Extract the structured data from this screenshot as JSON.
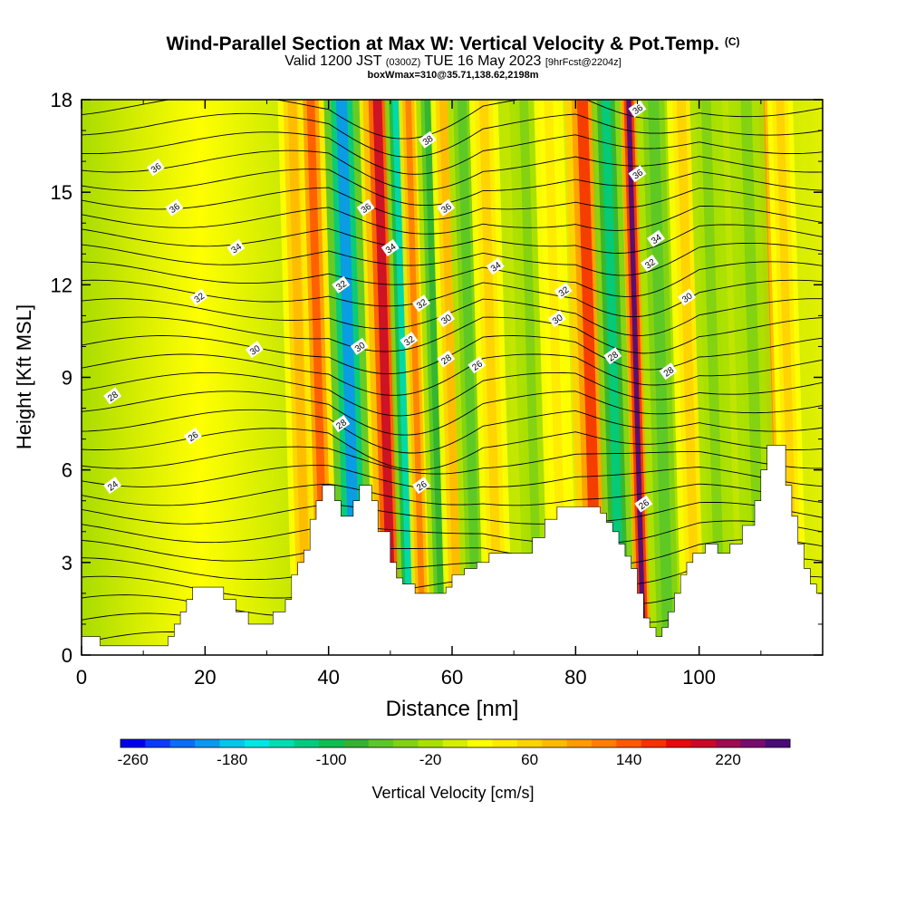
{
  "header": {
    "title": "Wind-Parallel Section at Max W: Vertical Velocity & Pot.Temp.",
    "title_mark": "(C)",
    "valid_prefix": "Valid 1200 JST",
    "valid_utc": "(0300Z)",
    "valid_date": "TUE 16 May 2023",
    "forecast": "[9hrFcst@2204z]",
    "boxwmax": "boxWmax=310@35.71,138.62,2198m"
  },
  "chart_data": {
    "type": "heatmap",
    "xlabel": "Distance [nm]",
    "ylabel": "Height [Kft MSL]",
    "xlim": [
      0,
      120
    ],
    "ylim": [
      0,
      18
    ],
    "x_ticks": [
      0,
      20,
      40,
      60,
      80,
      100
    ],
    "y_ticks": [
      0,
      3,
      6,
      9,
      12,
      15,
      18
    ],
    "colorbar": {
      "label": "Vertical Velocity [cm/s]",
      "tick_labels": [
        "-260",
        "-180",
        "-100",
        "-20",
        "60",
        "140",
        "220"
      ],
      "colors": [
        "#0000ee",
        "#0a3cf8",
        "#0a6ef5",
        "#0a98f0",
        "#00c6f0",
        "#00e6e6",
        "#00dcb4",
        "#00cc80",
        "#10be50",
        "#32b432",
        "#5ac828",
        "#80d214",
        "#aae000",
        "#d4ee00",
        "#ffff00",
        "#ffea00",
        "#ffd200",
        "#ffba00",
        "#ff9c00",
        "#ff7e00",
        "#ff5a00",
        "#f53200",
        "#e60a0a",
        "#c80a28",
        "#a00a50",
        "#7a0a6e",
        "#4a0a7a"
      ]
    },
    "terrain_kft": [
      [
        0,
        0.6
      ],
      [
        3,
        0.3
      ],
      [
        7,
        0.3
      ],
      [
        13,
        0.3
      ],
      [
        14,
        0.6
      ],
      [
        15,
        1.0
      ],
      [
        16,
        1.4
      ],
      [
        17,
        1.8
      ],
      [
        18,
        2.2
      ],
      [
        21,
        2.2
      ],
      [
        23,
        1.8
      ],
      [
        25,
        1.4
      ],
      [
        27,
        1.0
      ],
      [
        30,
        1.0
      ],
      [
        31,
        1.4
      ],
      [
        33,
        1.8
      ],
      [
        34,
        2.6
      ],
      [
        35,
        3.0
      ],
      [
        36,
        3.4
      ],
      [
        37,
        4.4
      ],
      [
        38,
        5.0
      ],
      [
        39,
        5.5
      ],
      [
        40,
        5.5
      ],
      [
        41,
        5.0
      ],
      [
        42,
        4.5
      ],
      [
        43,
        4.5
      ],
      [
        44,
        5.0
      ],
      [
        45,
        5.5
      ],
      [
        46,
        5.5
      ],
      [
        47,
        5.0
      ],
      [
        48,
        4.0
      ],
      [
        50,
        3.0
      ],
      [
        51,
        2.5
      ],
      [
        52,
        2.3
      ],
      [
        54,
        2.0
      ],
      [
        58,
        2.0
      ],
      [
        59,
        2.2
      ],
      [
        60,
        2.6
      ],
      [
        62,
        2.8
      ],
      [
        64,
        3.0
      ],
      [
        66,
        3.3
      ],
      [
        70,
        3.3
      ],
      [
        73,
        3.8
      ],
      [
        75,
        4.4
      ],
      [
        77,
        4.8
      ],
      [
        83,
        4.8
      ],
      [
        84,
        4.6
      ],
      [
        85,
        4.3
      ],
      [
        86,
        4.0
      ],
      [
        87,
        3.6
      ],
      [
        88,
        3.2
      ],
      [
        89,
        2.8
      ],
      [
        90,
        2.0
      ],
      [
        91,
        1.2
      ],
      [
        92,
        0.9
      ],
      [
        93,
        0.6
      ],
      [
        94,
        0.9
      ],
      [
        95,
        1.4
      ],
      [
        96,
        2.0
      ],
      [
        97,
        2.6
      ],
      [
        98,
        3.0
      ],
      [
        99,
        3.3
      ],
      [
        101,
        3.6
      ],
      [
        103,
        3.3
      ],
      [
        105,
        3.6
      ],
      [
        107,
        4.2
      ],
      [
        109,
        5.0
      ],
      [
        110,
        6.0
      ],
      [
        111,
        6.8
      ],
      [
        113,
        6.8
      ],
      [
        114,
        5.5
      ],
      [
        115,
        4.5
      ],
      [
        116,
        3.6
      ],
      [
        117,
        2.8
      ],
      [
        118,
        2.3
      ],
      [
        119,
        2.0
      ],
      [
        120,
        2.0
      ]
    ],
    "velocity_bands_cm_s": [
      {
        "x": 36.5,
        "w": 1.8,
        "v": 80
      },
      {
        "x": 39.5,
        "w": 1.6,
        "v": 140
      },
      {
        "x": 44.5,
        "w": 2.2,
        "v": -200
      },
      {
        "x": 50.3,
        "w": 1.8,
        "v": 200
      },
      {
        "x": 53.3,
        "w": 1.4,
        "v": -140
      },
      {
        "x": 55.3,
        "w": 1.2,
        "v": 120
      },
      {
        "x": 58.5,
        "w": 1.5,
        "v": -80
      },
      {
        "x": 61.0,
        "w": 1.6,
        "v": 80
      },
      {
        "x": 64.0,
        "w": 1.8,
        "v": -60
      },
      {
        "x": 67.5,
        "w": 1.8,
        "v": 60
      },
      {
        "x": 74.0,
        "w": 1.8,
        "v": -40
      },
      {
        "x": 78.0,
        "w": 1.8,
        "v": 40
      },
      {
        "x": 83.5,
        "w": 2.2,
        "v": 160
      },
      {
        "x": 87.3,
        "w": 1.8,
        "v": -120
      },
      {
        "x": 91.0,
        "w": 1.0,
        "v": 260
      },
      {
        "x": 95.0,
        "w": 2.2,
        "v": -60
      },
      {
        "x": 99.5,
        "w": 1.8,
        "v": 60
      },
      {
        "x": 103.5,
        "w": 2.0,
        "v": -40
      },
      {
        "x": 112.5,
        "w": 1.2,
        "v": 120
      },
      {
        "x": 115.5,
        "w": 1.6,
        "v": 60
      },
      {
        "x": 110.0,
        "w": 2.2,
        "v": -40
      }
    ],
    "theta_contour_labels": [
      {
        "x": 12,
        "y": 15.8,
        "text": "36"
      },
      {
        "x": 15,
        "y": 14.5,
        "text": "36"
      },
      {
        "x": 25,
        "y": 13.2,
        "text": "34"
      },
      {
        "x": 19,
        "y": 11.6,
        "text": "32"
      },
      {
        "x": 28,
        "y": 9.9,
        "text": "30"
      },
      {
        "x": 5,
        "y": 8.4,
        "text": "28"
      },
      {
        "x": 18,
        "y": 7.1,
        "text": "26"
      },
      {
        "x": 5,
        "y": 5.5,
        "text": "24"
      },
      {
        "x": 46,
        "y": 14.5,
        "text": "36"
      },
      {
        "x": 50,
        "y": 13.2,
        "text": "34"
      },
      {
        "x": 42,
        "y": 12.0,
        "text": "32"
      },
      {
        "x": 45,
        "y": 10.0,
        "text": "30"
      },
      {
        "x": 42,
        "y": 7.5,
        "text": "28"
      },
      {
        "x": 56,
        "y": 16.7,
        "text": "38"
      },
      {
        "x": 59,
        "y": 14.5,
        "text": "36"
      },
      {
        "x": 67,
        "y": 12.6,
        "text": "34"
      },
      {
        "x": 55,
        "y": 11.4,
        "text": "32"
      },
      {
        "x": 53,
        "y": 10.2,
        "text": "32"
      },
      {
        "x": 59,
        "y": 10.9,
        "text": "30"
      },
      {
        "x": 59,
        "y": 9.6,
        "text": "28"
      },
      {
        "x": 64,
        "y": 9.4,
        "text": "26"
      },
      {
        "x": 55,
        "y": 5.5,
        "text": "26"
      },
      {
        "x": 90,
        "y": 17.7,
        "text": "36"
      },
      {
        "x": 90,
        "y": 15.6,
        "text": "36"
      },
      {
        "x": 93,
        "y": 13.5,
        "text": "34"
      },
      {
        "x": 92,
        "y": 12.7,
        "text": "32"
      },
      {
        "x": 78,
        "y": 11.8,
        "text": "32"
      },
      {
        "x": 77,
        "y": 10.9,
        "text": "30"
      },
      {
        "x": 98,
        "y": 11.6,
        "text": "30"
      },
      {
        "x": 86,
        "y": 9.7,
        "text": "28"
      },
      {
        "x": 95,
        "y": 9.2,
        "text": "28"
      },
      {
        "x": 91,
        "y": 4.9,
        "text": "26"
      }
    ]
  }
}
